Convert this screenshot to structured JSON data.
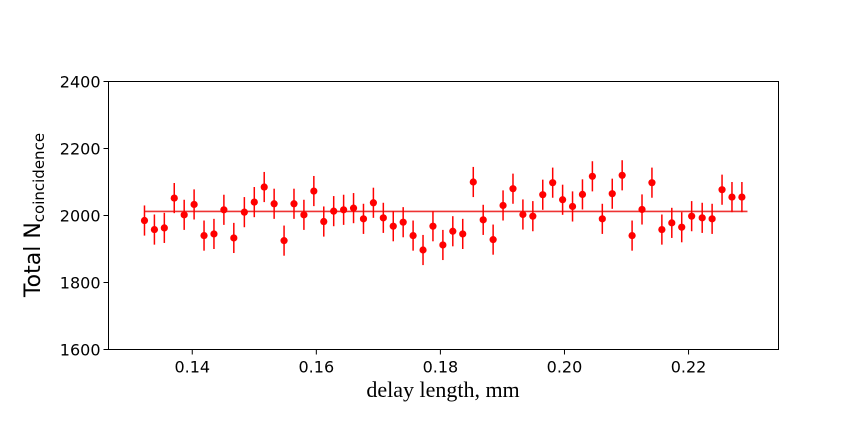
{
  "chart_data": {
    "type": "scatter",
    "title": "",
    "xlabel": "delay length, mm",
    "ylabel": {
      "main": "Total N",
      "subscript": "coincidence"
    },
    "xlim": [
      0.1265,
      0.2345
    ],
    "ylim": [
      1600,
      2400
    ],
    "xticks": [
      0.14,
      0.16,
      0.18,
      0.2,
      0.22
    ],
    "xtick_labels": [
      "0.14",
      "0.16",
      "0.18",
      "0.20",
      "0.22"
    ],
    "yticks": [
      1600,
      1800,
      2000,
      2200,
      2400
    ],
    "ytick_labels": [
      "1600",
      "1800",
      "2000",
      "2200",
      "2400"
    ],
    "grid": false,
    "legend": "none",
    "colors": {
      "data": "#ff0000",
      "fit": "#ee3333",
      "axes": "#000000"
    },
    "fit_line": {
      "x_start": 0.1323,
      "x_end": 0.2295,
      "y": 2012
    },
    "series": [
      {
        "x": [
          0.1323,
          0.1339,
          0.1355,
          0.1371,
          0.1387,
          0.1403,
          0.1419,
          0.1435,
          0.1451,
          0.1467,
          0.1484,
          0.15,
          0.1516,
          0.1532,
          0.1548,
          0.1564,
          0.158,
          0.1596,
          0.1612,
          0.1628,
          0.1644,
          0.166,
          0.1676,
          0.1692,
          0.1708,
          0.1724,
          0.174,
          0.1756,
          0.1772,
          0.1788,
          0.1804,
          0.182,
          0.1836,
          0.1853,
          0.1869,
          0.1885,
          0.1901,
          0.1917,
          0.1933,
          0.1949,
          0.1965,
          0.1981,
          0.1997,
          0.2013,
          0.2029,
          0.2045,
          0.2061,
          0.2077,
          0.2093,
          0.2109,
          0.2125,
          0.2141,
          0.2157,
          0.2173,
          0.2189,
          0.2205,
          0.2222,
          0.2238,
          0.2254,
          0.227,
          0.2286
        ],
        "y": [
          1985,
          1958,
          1963,
          2052,
          2002,
          2033,
          1940,
          1945,
          2017,
          1933,
          2010,
          2040,
          2085,
          2035,
          1925,
          2035,
          2002,
          2073,
          1982,
          2013,
          2017,
          2022,
          1990,
          2038,
          1993,
          1968,
          1980,
          1940,
          1897,
          1968,
          1912,
          1953,
          1945,
          2100,
          1987,
          1928,
          2030,
          2080,
          2003,
          1998,
          2062,
          2098,
          2047,
          2027,
          2063,
          2117,
          1990,
          2065,
          2120,
          1940,
          2018,
          2098,
          1958,
          1978,
          1965,
          1998,
          1993,
          1990,
          2077,
          2055,
          2055
        ],
        "yerr": [
          45,
          45,
          45,
          45,
          45,
          45,
          45,
          45,
          45,
          45,
          45,
          45,
          45,
          45,
          45,
          45,
          45,
          45,
          45,
          45,
          45,
          45,
          45,
          45,
          45,
          45,
          45,
          45,
          45,
          45,
          45,
          45,
          45,
          45,
          45,
          45,
          45,
          45,
          45,
          45,
          45,
          45,
          45,
          45,
          45,
          45,
          45,
          45,
          45,
          45,
          45,
          45,
          45,
          45,
          45,
          45,
          45,
          45,
          45,
          45,
          45
        ]
      }
    ]
  }
}
